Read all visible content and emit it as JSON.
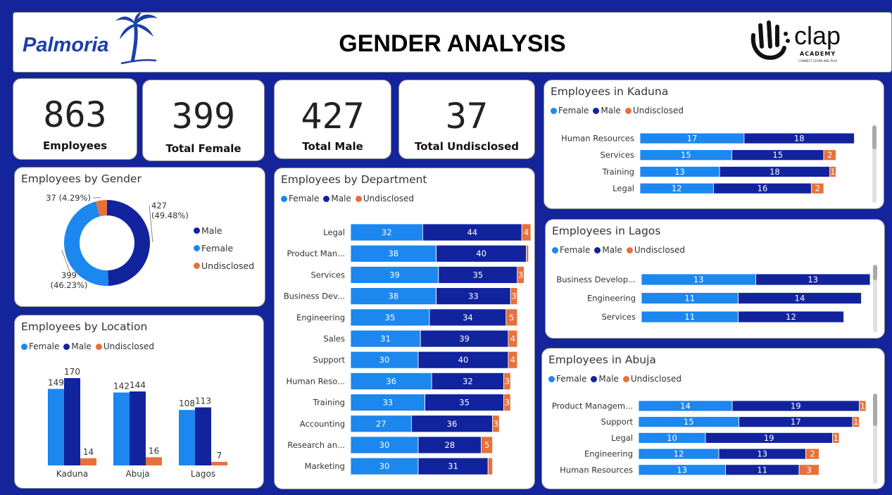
{
  "header": {
    "title": "GENDER ANALYSIS",
    "brand_name": "Palmoria",
    "partner_logo_text": "clap",
    "partner_logo_sub": "ACADEMY",
    "partner_logo_tagline": "CONNECT LEARN AND PLAY"
  },
  "colors": {
    "female": "#1c87ef",
    "male": "#12239e",
    "undisclosed": "#e8703a",
    "background": "#14249b"
  },
  "kpis": [
    {
      "value": "863",
      "label": "Employees"
    },
    {
      "value": "399",
      "label": "Total Female"
    },
    {
      "value": "427",
      "label": "Total Male"
    },
    {
      "value": "37",
      "label": "Total Undisclosed"
    }
  ],
  "legend": {
    "female": "Female",
    "male": "Male",
    "undisclosed": "Undisclosed"
  },
  "chart_data": [
    {
      "id": "gender",
      "type": "pie",
      "title": "Employees by Gender",
      "labels": [
        "Male",
        "Female",
        "Undisclosed"
      ],
      "values": [
        427,
        399,
        37
      ],
      "data_labels": [
        "427 (49.48%)",
        "399 (46.23%)",
        "37 (4.29%)"
      ]
    },
    {
      "id": "location",
      "type": "bar",
      "title": "Employees by Location",
      "categories": [
        "Kaduna",
        "Abuja",
        "Lagos"
      ],
      "series": [
        {
          "name": "Female",
          "values": [
            149,
            142,
            108
          ]
        },
        {
          "name": "Male",
          "values": [
            170,
            144,
            113
          ]
        },
        {
          "name": "Undisclosed",
          "values": [
            14,
            16,
            7
          ]
        }
      ]
    },
    {
      "id": "department",
      "type": "bar",
      "stacked": true,
      "orientation": "horizontal",
      "title": "Employees by Department",
      "categories": [
        "Legal",
        "Product Man...",
        "Services",
        "Business Dev...",
        "Engineering",
        "Sales",
        "Support",
        "Human Reso...",
        "Training",
        "Accounting",
        "Research an...",
        "Marketing"
      ],
      "series": [
        {
          "name": "Female",
          "values": [
            32,
            38,
            39,
            38,
            35,
            31,
            30,
            36,
            33,
            27,
            30,
            30
          ]
        },
        {
          "name": "Male",
          "values": [
            44,
            40,
            35,
            33,
            34,
            39,
            40,
            32,
            35,
            36,
            28,
            31
          ]
        },
        {
          "name": "Undisclosed",
          "values": [
            4,
            1,
            3,
            3,
            5,
            4,
            4,
            3,
            3,
            3,
            5,
            2
          ]
        }
      ]
    },
    {
      "id": "kaduna",
      "type": "bar",
      "stacked": true,
      "orientation": "horizontal",
      "title": "Employees in Kaduna",
      "categories": [
        "Human Resources",
        "Services",
        "Training",
        "Legal"
      ],
      "series": [
        {
          "name": "Female",
          "values": [
            17,
            15,
            13,
            12
          ]
        },
        {
          "name": "Male",
          "values": [
            18,
            15,
            18,
            16
          ]
        },
        {
          "name": "Undisclosed",
          "values": [
            0,
            2,
            1,
            2
          ]
        }
      ]
    },
    {
      "id": "lagos",
      "type": "bar",
      "stacked": true,
      "orientation": "horizontal",
      "title": "Employees in Lagos",
      "categories": [
        "Business Develop...",
        "Engineering",
        "Services"
      ],
      "series": [
        {
          "name": "Female",
          "values": [
            13,
            11,
            11
          ]
        },
        {
          "name": "Male",
          "values": [
            13,
            14,
            12
          ]
        },
        {
          "name": "Undisclosed",
          "values": [
            0,
            0,
            0
          ]
        }
      ]
    },
    {
      "id": "abuja",
      "type": "bar",
      "stacked": true,
      "orientation": "horizontal",
      "title": "Employees in Abuja",
      "categories": [
        "Product Managem...",
        "Support",
        "Legal",
        "Engineering",
        "Human Resources"
      ],
      "series": [
        {
          "name": "Female",
          "values": [
            14,
            15,
            10,
            12,
            13
          ]
        },
        {
          "name": "Male",
          "values": [
            19,
            17,
            19,
            13,
            11
          ]
        },
        {
          "name": "Undisclosed",
          "values": [
            1,
            1,
            1,
            2,
            3
          ]
        }
      ]
    }
  ]
}
